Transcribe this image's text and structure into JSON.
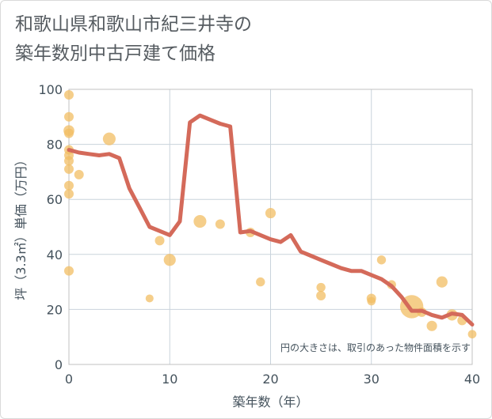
{
  "chart_data": {
    "type": "scatter",
    "title": "和歌山県和歌山市紀三井寺の\n築年数別中古戸建て価格",
    "xlabel": "築年数（年）",
    "ylabel": "坪（3.3㎡）単価（万円）",
    "xlim": [
      0,
      40
    ],
    "ylim": [
      0,
      100
    ],
    "x_ticks": [
      0,
      10,
      20,
      30,
      40
    ],
    "y_ticks": [
      0,
      20,
      40,
      60,
      80,
      100
    ],
    "grid": true,
    "note": "円の大きさは、取引のあった物件面積を示す",
    "colors": {
      "bubble": "#f2bd63",
      "line": "#d46a5a",
      "grid": "#c9d3dc",
      "frame": "#c0c0c0"
    },
    "points": [
      {
        "x": 0,
        "y": 98,
        "size": 1
      },
      {
        "x": 0,
        "y": 90,
        "size": 1
      },
      {
        "x": 0,
        "y": 85,
        "size": 1.3
      },
      {
        "x": 0,
        "y": 84,
        "size": 1
      },
      {
        "x": 0,
        "y": 78,
        "size": 1
      },
      {
        "x": 0,
        "y": 76,
        "size": 1
      },
      {
        "x": 0,
        "y": 74,
        "size": 1
      },
      {
        "x": 0,
        "y": 71,
        "size": 1
      },
      {
        "x": 0,
        "y": 65,
        "size": 1
      },
      {
        "x": 0,
        "y": 62,
        "size": 1
      },
      {
        "x": 0,
        "y": 34,
        "size": 1
      },
      {
        "x": 1,
        "y": 69,
        "size": 1
      },
      {
        "x": 4,
        "y": 82,
        "size": 1.8
      },
      {
        "x": 8,
        "y": 24,
        "size": 0.7
      },
      {
        "x": 9,
        "y": 45,
        "size": 1
      },
      {
        "x": 10,
        "y": 38,
        "size": 1.6
      },
      {
        "x": 13,
        "y": 52,
        "size": 1.8
      },
      {
        "x": 15,
        "y": 51,
        "size": 1
      },
      {
        "x": 18,
        "y": 48,
        "size": 1
      },
      {
        "x": 19,
        "y": 30,
        "size": 0.9
      },
      {
        "x": 20,
        "y": 55,
        "size": 1.2
      },
      {
        "x": 25,
        "y": 28,
        "size": 0.9
      },
      {
        "x": 25,
        "y": 25,
        "size": 1
      },
      {
        "x": 30,
        "y": 24,
        "size": 1
      },
      {
        "x": 30,
        "y": 23,
        "size": 0.8
      },
      {
        "x": 31,
        "y": 38,
        "size": 0.9
      },
      {
        "x": 32,
        "y": 29,
        "size": 0.9
      },
      {
        "x": 34,
        "y": 21,
        "size": 6
      },
      {
        "x": 35,
        "y": 19,
        "size": 1
      },
      {
        "x": 36,
        "y": 14,
        "size": 1.2
      },
      {
        "x": 37,
        "y": 30,
        "size": 1.4
      },
      {
        "x": 38,
        "y": 18,
        "size": 1.4
      },
      {
        "x": 39,
        "y": 16,
        "size": 1
      },
      {
        "x": 40,
        "y": 11,
        "size": 0.8
      }
    ],
    "trend_line": {
      "x": [
        0,
        1,
        2,
        3,
        4,
        5,
        6,
        7,
        8,
        9,
        10,
        11,
        12,
        13,
        14,
        15,
        16,
        17,
        18,
        19,
        20,
        21,
        22,
        23,
        24,
        25,
        26,
        27,
        28,
        29,
        30,
        31,
        32,
        33,
        34,
        35,
        36,
        37,
        38,
        39,
        40
      ],
      "y": [
        78,
        77,
        76.5,
        76,
        76.5,
        75,
        64,
        57,
        50,
        48.5,
        47,
        52,
        88,
        90.5,
        89,
        87.5,
        86.5,
        48,
        48.5,
        47,
        45.5,
        44.5,
        47,
        41,
        39.5,
        38,
        36.5,
        35,
        34,
        34,
        32.5,
        31,
        28.5,
        24.5,
        19.5,
        19.5,
        18,
        17,
        18.5,
        18,
        14.5
      ]
    }
  }
}
